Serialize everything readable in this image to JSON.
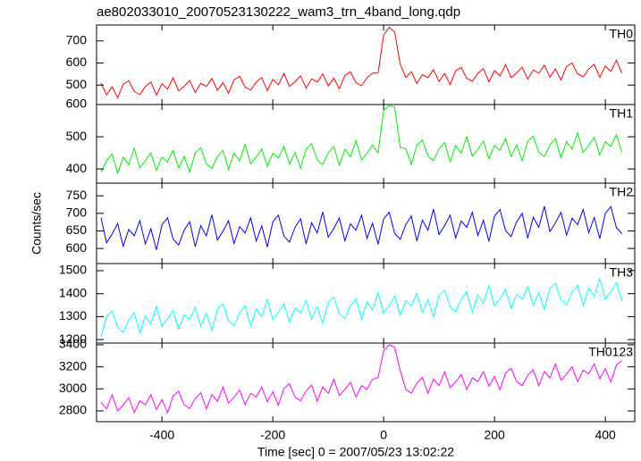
{
  "chart_data": [
    {
      "type": "line",
      "title": "ae802033010_20070523130222_wam3_trn_4band_long.qdp",
      "x": [
        -510,
        -500,
        -490,
        -480,
        -470,
        -460,
        -450,
        -440,
        -430,
        -420,
        -410,
        -400,
        -390,
        -380,
        -370,
        -360,
        -350,
        -340,
        -330,
        -320,
        -310,
        -300,
        -290,
        -280,
        -270,
        -260,
        -250,
        -240,
        -230,
        -220,
        -210,
        -200,
        -190,
        -180,
        -170,
        -160,
        -150,
        -140,
        -130,
        -120,
        -110,
        -100,
        -90,
        -80,
        -70,
        -60,
        -50,
        -40,
        -30,
        -20,
        -10,
        0,
        10,
        20,
        30,
        40,
        50,
        60,
        70,
        80,
        90,
        100,
        110,
        120,
        130,
        140,
        150,
        160,
        170,
        180,
        190,
        200,
        210,
        220,
        230,
        240,
        250,
        260,
        270,
        280,
        290,
        300,
        310,
        320,
        330,
        340,
        350,
        360,
        370,
        380,
        390,
        400,
        410,
        420,
        430
      ],
      "series": [
        {
          "name": "TH0",
          "color": "#ff0000",
          "values": [
            510,
            456,
            492,
            443,
            504,
            520,
            471,
            457,
            493,
            514,
            455,
            506,
            482,
            533,
            474,
            495,
            521,
            467,
            508,
            494,
            530,
            476,
            512,
            463,
            524,
            540,
            491,
            477,
            513,
            534,
            475,
            526,
            502,
            553,
            494,
            515,
            541,
            487,
            528,
            514,
            550,
            496,
            532,
            483,
            544,
            560,
            511,
            497,
            533,
            554,
            555,
            726,
            762,
            740,
            594,
            535,
            561,
            507,
            548,
            534,
            570,
            516,
            552,
            503,
            564,
            580,
            531,
            517,
            553,
            574,
            515,
            566,
            542,
            593,
            534,
            555,
            581,
            527,
            568,
            554,
            590,
            536,
            572,
            523,
            584,
            600,
            551,
            537,
            573,
            594,
            535,
            586,
            562,
            613,
            554
          ]
        }
      ],
      "ylim": [
        412,
        772
      ],
      "yticks": [
        500,
        600,
        700
      ]
    },
    {
      "type": "line",
      "x": [
        -510,
        -500,
        -490,
        -480,
        -470,
        -460,
        -450,
        -440,
        -430,
        -420,
        -410,
        -400,
        -390,
        -380,
        -370,
        -360,
        -350,
        -340,
        -330,
        -320,
        -310,
        -300,
        -290,
        -280,
        -270,
        -260,
        -250,
        -240,
        -230,
        -220,
        -210,
        -200,
        -190,
        -180,
        -170,
        -160,
        -150,
        -140,
        -130,
        -120,
        -110,
        -100,
        -90,
        -80,
        -70,
        -60,
        -50,
        -40,
        -30,
        -20,
        -10,
        0,
        10,
        20,
        30,
        40,
        50,
        60,
        70,
        80,
        90,
        100,
        110,
        120,
        130,
        140,
        150,
        160,
        170,
        180,
        190,
        200,
        210,
        220,
        230,
        240,
        250,
        260,
        270,
        280,
        290,
        300,
        310,
        320,
        330,
        340,
        350,
        360,
        370,
        380,
        390,
        400,
        410,
        420,
        430
      ],
      "series": [
        {
          "name": "TH1",
          "color": "#00ee00",
          "values": [
            390,
            426,
            446,
            387,
            437,
            413,
            464,
            404,
            425,
            450,
            396,
            437,
            422,
            458,
            403,
            439,
            390,
            450,
            466,
            416,
            402,
            438,
            458,
            399,
            449,
            425,
            476,
            416,
            437,
            462,
            408,
            449,
            434,
            470,
            415,
            451,
            402,
            462,
            478,
            428,
            414,
            450,
            470,
            411,
            461,
            437,
            488,
            428,
            449,
            474,
            450,
            581,
            596,
            592,
            467,
            463,
            414,
            474,
            490,
            440,
            426,
            462,
            482,
            423,
            473,
            449,
            500,
            440,
            461,
            486,
            432,
            473,
            458,
            494,
            439,
            475,
            426,
            486,
            502,
            452,
            438,
            474,
            494,
            435,
            485,
            461,
            512,
            452,
            473,
            498,
            444,
            485,
            470,
            506,
            451
          ]
        }
      ],
      "ylim": [
        356,
        600
      ],
      "yticks": [
        400,
        500,
        600
      ]
    },
    {
      "type": "line",
      "ylabel": "Counts/sec",
      "x": [
        -510,
        -500,
        -490,
        -480,
        -470,
        -460,
        -450,
        -440,
        -430,
        -420,
        -410,
        -400,
        -390,
        -380,
        -370,
        -360,
        -350,
        -340,
        -330,
        -320,
        -310,
        -300,
        -290,
        -280,
        -270,
        -260,
        -250,
        -240,
        -230,
        -220,
        -210,
        -200,
        -190,
        -180,
        -170,
        -160,
        -150,
        -140,
        -130,
        -120,
        -110,
        -100,
        -90,
        -80,
        -70,
        -60,
        -50,
        -40,
        -30,
        -20,
        -10,
        0,
        10,
        20,
        30,
        40,
        50,
        60,
        70,
        80,
        90,
        100,
        110,
        120,
        130,
        140,
        150,
        160,
        170,
        180,
        190,
        200,
        210,
        220,
        230,
        240,
        250,
        260,
        270,
        280,
        290,
        300,
        310,
        320,
        330,
        340,
        350,
        360,
        370,
        380,
        390,
        400,
        410,
        420,
        430
      ],
      "series": [
        {
          "name": "TH2",
          "color": "#0000ff",
          "values": [
            688,
            616,
            641,
            671,
            606,
            654,
            636,
            679,
            613,
            656,
            596,
            668,
            687,
            627,
            610,
            652,
            676,
            605,
            665,
            636,
            696,
            624,
            649,
            679,
            614,
            662,
            644,
            687,
            621,
            664,
            604,
            676,
            695,
            635,
            618,
            660,
            684,
            613,
            673,
            644,
            704,
            632,
            657,
            687,
            622,
            670,
            652,
            695,
            629,
            672,
            612,
            684,
            703,
            643,
            626,
            668,
            692,
            621,
            681,
            652,
            712,
            640,
            665,
            695,
            630,
            678,
            660,
            703,
            637,
            680,
            620,
            692,
            711,
            651,
            634,
            676,
            700,
            629,
            689,
            660,
            720,
            648,
            673,
            703,
            638,
            686,
            668,
            711,
            645,
            688,
            628,
            700,
            719,
            659,
            642
          ]
        }
      ],
      "ylim": [
        557,
        786
      ],
      "yticks": [
        600,
        650,
        700,
        750
      ]
    },
    {
      "type": "line",
      "x": [
        -510,
        -500,
        -490,
        -480,
        -470,
        -460,
        -450,
        -440,
        -430,
        -420,
        -410,
        -400,
        -390,
        -380,
        -370,
        -360,
        -350,
        -340,
        -330,
        -320,
        -310,
        -300,
        -290,
        -280,
        -270,
        -260,
        -250,
        -240,
        -230,
        -220,
        -210,
        -200,
        -190,
        -180,
        -170,
        -160,
        -150,
        -140,
        -130,
        -120,
        -110,
        -100,
        -90,
        -80,
        -70,
        -60,
        -50,
        -40,
        -30,
        -20,
        -10,
        0,
        10,
        20,
        30,
        40,
        50,
        60,
        70,
        80,
        90,
        100,
        110,
        120,
        130,
        140,
        150,
        160,
        170,
        180,
        190,
        200,
        210,
        220,
        230,
        240,
        250,
        260,
        270,
        280,
        290,
        300,
        310,
        320,
        330,
        340,
        350,
        360,
        370,
        380,
        390,
        400,
        410,
        420,
        430
      ],
      "series": [
        {
          "name": "TH3",
          "color": "#00ffff",
          "values": [
            1210,
            1302,
            1325,
            1253,
            1231,
            1286,
            1317,
            1229,
            1304,
            1269,
            1345,
            1257,
            1288,
            1328,
            1246,
            1308,
            1286,
            1341,
            1259,
            1314,
            1240,
            1332,
            1355,
            1283,
            1261,
            1316,
            1347,
            1259,
            1334,
            1299,
            1375,
            1287,
            1318,
            1358,
            1276,
            1338,
            1316,
            1371,
            1289,
            1344,
            1270,
            1362,
            1385,
            1313,
            1291,
            1346,
            1377,
            1289,
            1364,
            1329,
            1405,
            1317,
            1348,
            1388,
            1306,
            1368,
            1346,
            1401,
            1319,
            1374,
            1300,
            1392,
            1415,
            1343,
            1321,
            1376,
            1407,
            1319,
            1394,
            1359,
            1435,
            1347,
            1378,
            1418,
            1336,
            1398,
            1376,
            1431,
            1349,
            1404,
            1330,
            1422,
            1445,
            1373,
            1351,
            1406,
            1437,
            1349,
            1424,
            1389,
            1465,
            1377,
            1408,
            1448,
            1366
          ]
        }
      ],
      "ylim": [
        1185,
        1531
      ],
      "yticks": [
        1200,
        1300,
        1400,
        1500
      ]
    },
    {
      "type": "line",
      "xlabel": "Time [sec] 0 = 2007/05/23 13:02:22",
      "x": [
        -510,
        -500,
        -490,
        -480,
        -470,
        -460,
        -450,
        -440,
        -430,
        -420,
        -410,
        -400,
        -390,
        -380,
        -370,
        -360,
        -350,
        -340,
        -330,
        -320,
        -310,
        -300,
        -290,
        -280,
        -270,
        -260,
        -250,
        -240,
        -230,
        -220,
        -210,
        -200,
        -190,
        -180,
        -170,
        -160,
        -150,
        -140,
        -130,
        -120,
        -110,
        -100,
        -90,
        -80,
        -70,
        -60,
        -50,
        -40,
        -30,
        -20,
        -10,
        0,
        10,
        20,
        30,
        40,
        50,
        60,
        70,
        80,
        90,
        100,
        110,
        120,
        130,
        140,
        150,
        160,
        170,
        180,
        190,
        200,
        210,
        220,
        230,
        240,
        250,
        260,
        270,
        280,
        290,
        300,
        310,
        320,
        330,
        340,
        350,
        360,
        370,
        380,
        390,
        400,
        410,
        420,
        430
      ],
      "series": [
        {
          "name": "TH0123",
          "color": "#ff00ff",
          "values": [
            2878,
            2819,
            2947,
            2801,
            2854,
            2920,
            2786,
            2890,
            2856,
            2947,
            2813,
            2904,
            2782,
            2936,
            2977,
            2855,
            2821,
            2912,
            2965,
            2819,
            2948,
            2889,
            3017,
            2871,
            2924,
            2990,
            2856,
            2960,
            2926,
            3017,
            2883,
            2974,
            2852,
            3006,
            3047,
            2925,
            2891,
            2982,
            3035,
            2889,
            3018,
            2959,
            3087,
            2941,
            2994,
            3060,
            2926,
            3030,
            2996,
            3087,
            3103,
            3344,
            3400,
            3376,
            3167,
            2995,
            2961,
            3052,
            3105,
            2959,
            3088,
            3029,
            3157,
            3011,
            3064,
            3130,
            2996,
            3100,
            3066,
            3157,
            3023,
            3114,
            2992,
            3146,
            3187,
            3065,
            3031,
            3122,
            3175,
            3029,
            3158,
            3099,
            3227,
            3081,
            3134,
            3200,
            3066,
            3170,
            3136,
            3227,
            3093,
            3184,
            3062,
            3216,
            3257
          ]
        }
      ],
      "ylim": [
        2702,
        3416
      ],
      "yticks": [
        2800,
        3000,
        3200,
        3400
      ],
      "xlim": [
        -518,
        453
      ],
      "xticks": [
        -400,
        -200,
        0,
        200,
        400
      ]
    }
  ]
}
